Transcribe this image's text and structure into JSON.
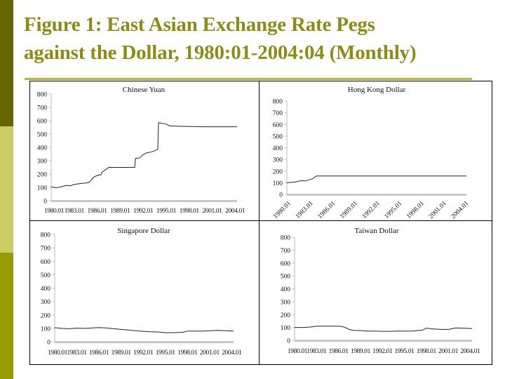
{
  "slide": {
    "title_line1": "Figure 1: East Asian Exchange Rate Pegs",
    "title_line2": "against the Dollar, 1980:01-2004:04 (Monthly)",
    "colors": {
      "title": "#8c8c14",
      "rule": "#b5b53c",
      "sidebar_top": "#666600",
      "sidebar_mid": "#cccc66",
      "sidebar_bottom": "#999900",
      "line": "#222222",
      "axis": "#bbbbbb"
    }
  },
  "chart_data": [
    {
      "type": "line",
      "title": "Chinese Yuan",
      "xlabel": "",
      "ylabel": "",
      "ylim": [
        0,
        800
      ],
      "yticks": [
        0,
        100,
        200,
        300,
        400,
        500,
        600,
        700,
        800
      ],
      "xtick_labels": [
        "1980.01",
        "1983.01",
        "1986.01",
        "1989.01",
        "1992.01",
        "1995.01",
        "1998.01",
        "2001.01",
        "2004.01"
      ],
      "xtick_rotation": 0,
      "grid": false,
      "x": [
        1980.0,
        1980.5,
        1981.0,
        1982.0,
        1982.5,
        1983.0,
        1984.0,
        1984.5,
        1985.0,
        1985.5,
        1986.0,
        1986.5,
        1986.6,
        1987.5,
        1988.5,
        1989.5,
        1990.5,
        1990.9,
        1991.0,
        1991.5,
        1992.0,
        1992.5,
        1993.0,
        1993.5,
        1993.9,
        1994.0,
        1995.0,
        1995.5,
        1996.0,
        1997.0,
        2000.0,
        2004.25
      ],
      "values": [
        105,
        98,
        100,
        115,
        112,
        122,
        130,
        132,
        140,
        175,
        190,
        195,
        212,
        250,
        250,
        250,
        250,
        250,
        318,
        320,
        345,
        360,
        365,
        375,
        385,
        585,
        575,
        560,
        560,
        558,
        555,
        555
      ]
    },
    {
      "type": "line",
      "title": "Hong Kong Dollar",
      "xlabel": "",
      "ylabel": "",
      "ylim": [
        0,
        800
      ],
      "yticks": [
        0,
        100,
        200,
        300,
        400,
        500,
        600,
        700,
        800
      ],
      "xtick_labels": [
        "1980.01",
        "1983.01",
        "1986.01",
        "1989.01",
        "1992.01",
        "1995.01",
        "1998.01",
        "2001.01",
        "2004.01"
      ],
      "xtick_rotation": -45,
      "grid": false,
      "x": [
        1980.0,
        1981.0,
        1982.0,
        1982.5,
        1983.0,
        1983.5,
        1983.8,
        1984.0,
        1990.0,
        1995.0,
        2000.0,
        2004.25
      ],
      "values": [
        100,
        105,
        118,
        115,
        125,
        135,
        150,
        158,
        158,
        158,
        158,
        158
      ]
    },
    {
      "type": "line",
      "title": "Singapore Dollar",
      "xlabel": "",
      "ylabel": "",
      "ylim": [
        0,
        800
      ],
      "yticks": [
        0,
        100,
        200,
        300,
        400,
        500,
        600,
        700,
        800
      ],
      "xtick_labels": [
        "1980.01",
        "1983.01",
        "1986.01",
        "1989.01",
        "1992.01",
        "1995.01",
        "1998.01",
        "2001.01",
        "2004.01"
      ],
      "xtick_rotation": 0,
      "grid": false,
      "x": [
        1980.0,
        1981.0,
        1982.0,
        1983.0,
        1984.0,
        1985.0,
        1986.0,
        1987.0,
        1988.0,
        1989.0,
        1990.0,
        1991.0,
        1992.0,
        1993.0,
        1994.0,
        1995.0,
        1996.0,
        1997.0,
        1997.5,
        1998.0,
        1999.0,
        2000.0,
        2001.0,
        2002.0,
        2003.0,
        2004.25
      ],
      "values": [
        105,
        100,
        97,
        102,
        100,
        103,
        106,
        103,
        97,
        92,
        88,
        82,
        78,
        75,
        73,
        68,
        68,
        70,
        72,
        80,
        80,
        80,
        82,
        85,
        83,
        80
      ]
    },
    {
      "type": "line",
      "title": "Taiwan Dollar",
      "xlabel": "",
      "ylabel": "",
      "ylim": [
        0,
        800
      ],
      "yticks": [
        0,
        100,
        200,
        300,
        400,
        500,
        600,
        700,
        800
      ],
      "xtick_labels": [
        "1980.01",
        "1983.01",
        "1986.01",
        "1989.01",
        "1992.01",
        "1995.01",
        "1998.01",
        "2001.01",
        "2004.01"
      ],
      "xtick_rotation": 0,
      "grid": false,
      "x": [
        1980.0,
        1981.0,
        1982.0,
        1983.0,
        1984.0,
        1985.0,
        1986.0,
        1986.5,
        1987.0,
        1987.5,
        1988.0,
        1989.0,
        1990.0,
        1991.0,
        1992.0,
        1993.0,
        1994.0,
        1995.0,
        1996.0,
        1997.0,
        1997.5,
        1998.0,
        1999.0,
        2000.0,
        2001.0,
        2002.0,
        2003.0,
        2004.25
      ],
      "values": [
        100,
        100,
        103,
        110,
        110,
        110,
        110,
        108,
        98,
        85,
        78,
        76,
        72,
        72,
        70,
        70,
        72,
        72,
        72,
        78,
        80,
        95,
        88,
        85,
        85,
        97,
        95,
        92
      ]
    }
  ]
}
